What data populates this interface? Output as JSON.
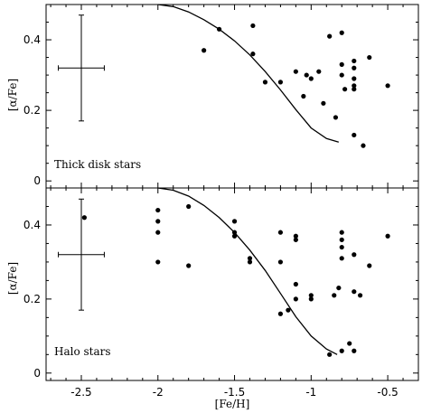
{
  "chart_data": [
    {
      "type": "scatter",
      "panel_label": "Thick disk stars",
      "ylabel": "[α/Fe]",
      "xlim": [
        -2.73,
        -0.3
      ],
      "ylim": [
        -0.02,
        0.5
      ],
      "yticks": [
        "0",
        "0.2",
        "0.4"
      ],
      "yticks_values": [
        0,
        0.2,
        0.4
      ],
      "error_bar": {
        "x": -2.5,
        "y": 0.32,
        "xerr": 0.15,
        "yerr": 0.15
      },
      "points": [
        {
          "x": -1.7,
          "y": 0.37
        },
        {
          "x": -1.6,
          "y": 0.43
        },
        {
          "x": -1.38,
          "y": 0.44
        },
        {
          "x": -1.38,
          "y": 0.36
        },
        {
          "x": -1.3,
          "y": 0.28
        },
        {
          "x": -1.2,
          "y": 0.28
        },
        {
          "x": -1.1,
          "y": 0.31
        },
        {
          "x": -1.05,
          "y": 0.24
        },
        {
          "x": -1.03,
          "y": 0.3
        },
        {
          "x": -1.0,
          "y": 0.29
        },
        {
          "x": -0.95,
          "y": 0.31
        },
        {
          "x": -0.92,
          "y": 0.22
        },
        {
          "x": -0.88,
          "y": 0.41
        },
        {
          "x": -0.84,
          "y": 0.18
        },
        {
          "x": -0.8,
          "y": 0.42
        },
        {
          "x": -0.8,
          "y": 0.33
        },
        {
          "x": -0.8,
          "y": 0.3
        },
        {
          "x": -0.78,
          "y": 0.26
        },
        {
          "x": -0.72,
          "y": 0.34
        },
        {
          "x": -0.72,
          "y": 0.32
        },
        {
          "x": -0.72,
          "y": 0.29
        },
        {
          "x": -0.72,
          "y": 0.27
        },
        {
          "x": -0.72,
          "y": 0.26
        },
        {
          "x": -0.72,
          "y": 0.13
        },
        {
          "x": -0.66,
          "y": 0.1
        },
        {
          "x": -0.62,
          "y": 0.35
        },
        {
          "x": -0.5,
          "y": 0.27
        }
      ],
      "curve": [
        {
          "x": -2.0,
          "y": 0.5
        },
        {
          "x": -1.9,
          "y": 0.494
        },
        {
          "x": -1.8,
          "y": 0.479
        },
        {
          "x": -1.7,
          "y": 0.457
        },
        {
          "x": -1.6,
          "y": 0.43
        },
        {
          "x": -1.5,
          "y": 0.397
        },
        {
          "x": -1.4,
          "y": 0.357
        },
        {
          "x": -1.3,
          "y": 0.31
        },
        {
          "x": -1.2,
          "y": 0.258
        },
        {
          "x": -1.1,
          "y": 0.202
        },
        {
          "x": -1.0,
          "y": 0.15
        },
        {
          "x": -0.9,
          "y": 0.12
        },
        {
          "x": -0.82,
          "y": 0.11
        }
      ]
    },
    {
      "type": "scatter",
      "panel_label": "Halo stars",
      "ylabel": "[α/Fe]",
      "xlabel": "[Fe/H]",
      "xlim": [
        -2.73,
        -0.3
      ],
      "ylim": [
        -0.02,
        0.5
      ],
      "xticks": [
        "-2.5",
        "-2",
        "-1.5",
        "-1",
        "-0.5"
      ],
      "xticks_values": [
        -2.5,
        -2,
        -1.5,
        -1,
        -0.5
      ],
      "yticks": [
        "0",
        "0.2",
        "0.4"
      ],
      "yticks_values": [
        0,
        0.2,
        0.4
      ],
      "error_bar": {
        "x": -2.5,
        "y": 0.32,
        "xerr": 0.15,
        "yerr": 0.15
      },
      "points": [
        {
          "x": -2.48,
          "y": 0.42
        },
        {
          "x": -2.0,
          "y": 0.44
        },
        {
          "x": -2.0,
          "y": 0.41
        },
        {
          "x": -2.0,
          "y": 0.38
        },
        {
          "x": -2.0,
          "y": 0.3
        },
        {
          "x": -1.8,
          "y": 0.45
        },
        {
          "x": -1.8,
          "y": 0.29
        },
        {
          "x": -1.5,
          "y": 0.41
        },
        {
          "x": -1.5,
          "y": 0.38
        },
        {
          "x": -1.5,
          "y": 0.37
        },
        {
          "x": -1.4,
          "y": 0.31
        },
        {
          "x": -1.4,
          "y": 0.3
        },
        {
          "x": -1.2,
          "y": 0.38
        },
        {
          "x": -1.2,
          "y": 0.3
        },
        {
          "x": -1.2,
          "y": 0.16
        },
        {
          "x": -1.15,
          "y": 0.17
        },
        {
          "x": -1.1,
          "y": 0.37
        },
        {
          "x": -1.1,
          "y": 0.36
        },
        {
          "x": -1.1,
          "y": 0.24
        },
        {
          "x": -1.1,
          "y": 0.2
        },
        {
          "x": -1.0,
          "y": 0.21
        },
        {
          "x": -1.0,
          "y": 0.2
        },
        {
          "x": -0.88,
          "y": 0.05
        },
        {
          "x": -0.85,
          "y": 0.21
        },
        {
          "x": -0.82,
          "y": 0.23
        },
        {
          "x": -0.8,
          "y": 0.38
        },
        {
          "x": -0.8,
          "y": 0.36
        },
        {
          "x": -0.8,
          "y": 0.34
        },
        {
          "x": -0.8,
          "y": 0.31
        },
        {
          "x": -0.8,
          "y": 0.06
        },
        {
          "x": -0.75,
          "y": 0.08
        },
        {
          "x": -0.72,
          "y": 0.32
        },
        {
          "x": -0.72,
          "y": 0.22
        },
        {
          "x": -0.72,
          "y": 0.06
        },
        {
          "x": -0.68,
          "y": 0.21
        },
        {
          "x": -0.62,
          "y": 0.29
        },
        {
          "x": -0.5,
          "y": 0.37
        }
      ],
      "curve": [
        {
          "x": -2.0,
          "y": 0.5
        },
        {
          "x": -1.9,
          "y": 0.494
        },
        {
          "x": -1.8,
          "y": 0.478
        },
        {
          "x": -1.7,
          "y": 0.453
        },
        {
          "x": -1.6,
          "y": 0.42
        },
        {
          "x": -1.5,
          "y": 0.38
        },
        {
          "x": -1.4,
          "y": 0.332
        },
        {
          "x": -1.3,
          "y": 0.277
        },
        {
          "x": -1.2,
          "y": 0.215
        },
        {
          "x": -1.1,
          "y": 0.152
        },
        {
          "x": -1.0,
          "y": 0.1
        },
        {
          "x": -0.9,
          "y": 0.065
        },
        {
          "x": -0.83,
          "y": 0.05
        }
      ]
    }
  ]
}
